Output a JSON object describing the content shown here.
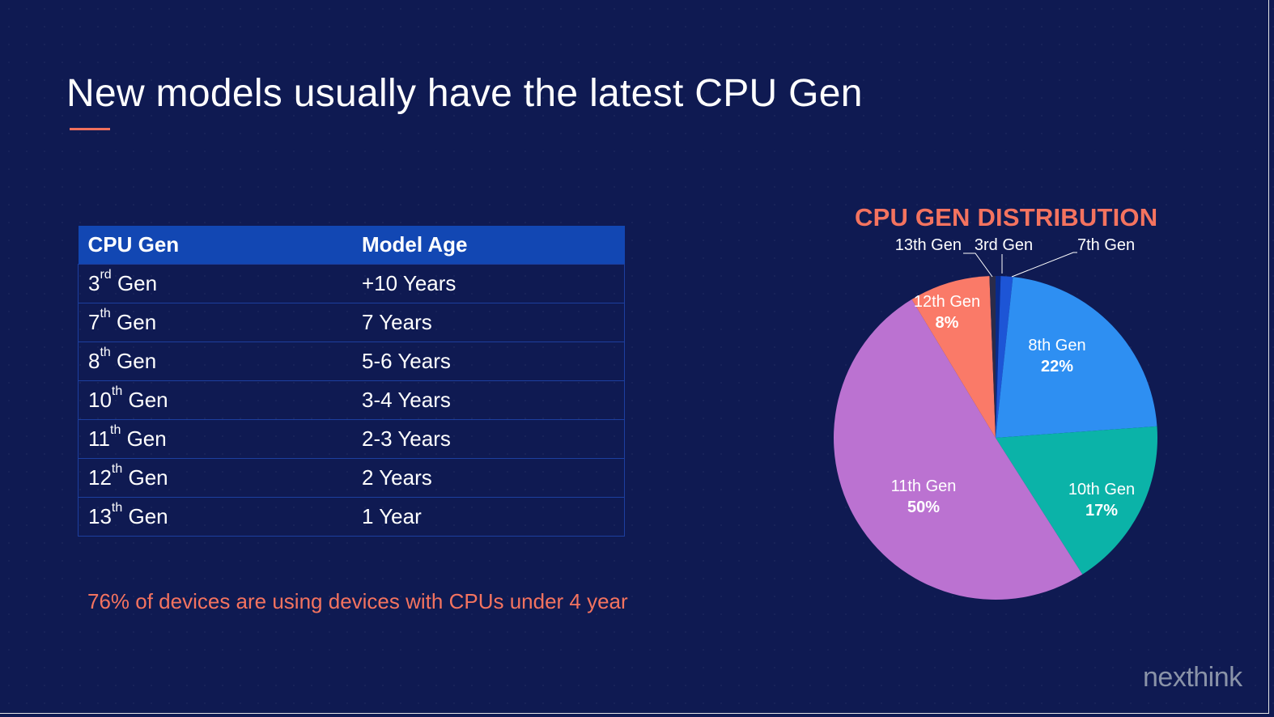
{
  "slide": {
    "title": "New models usually have the latest CPU Gen",
    "footnote": "76% of devices are using devices with CPUs under 4 year",
    "logo": "nexthink",
    "accent_color": "#f4735f",
    "background_color": "#0f1a52"
  },
  "table": {
    "headers": [
      "CPU Gen",
      "Model Age"
    ],
    "rows": [
      {
        "num": "3",
        "suffix": "rd",
        "gen": "Gen",
        "age": "+10 Years"
      },
      {
        "num": "7",
        "suffix": "th",
        "gen": "Gen",
        "age": "7 Years"
      },
      {
        "num": "8",
        "suffix": "th",
        "gen": "Gen",
        "age": "5-6 Years"
      },
      {
        "num": "10",
        "suffix": "th",
        "gen": "Gen",
        "age": "3-4 Years"
      },
      {
        "num": "11",
        "suffix": "th",
        "gen": "Gen",
        "age": "2-3 Years"
      },
      {
        "num": "12",
        "suffix": "th",
        "gen": "Gen",
        "age": "2 Years"
      },
      {
        "num": "13",
        "suffix": "th",
        "gen": "Gen",
        "age": "1 Year"
      }
    ]
  },
  "chart_data": {
    "type": "pie",
    "title": "CPU GEN DISTRIBUTION",
    "slices": [
      {
        "label": "3rd Gen",
        "value": 0.5,
        "color": "#0a2a8a",
        "pct_label": ""
      },
      {
        "label": "7th Gen",
        "value": 1.2,
        "color": "#1d55d6",
        "pct_label": ""
      },
      {
        "label": "8th Gen",
        "value": 22,
        "color": "#2e8ff2",
        "pct_label": "22%"
      },
      {
        "label": "10th Gen",
        "value": 17,
        "color": "#0bb3a8",
        "pct_label": "17%"
      },
      {
        "label": "11th Gen",
        "value": 50,
        "color": "#bb72d1",
        "pct_label": "50%"
      },
      {
        "label": "12th Gen",
        "value": 8,
        "color": "#fa7a68",
        "pct_label": "8%"
      },
      {
        "label": "13th Gen",
        "value": 0.6,
        "color": "#2a2b4a",
        "pct_label": ""
      }
    ]
  }
}
